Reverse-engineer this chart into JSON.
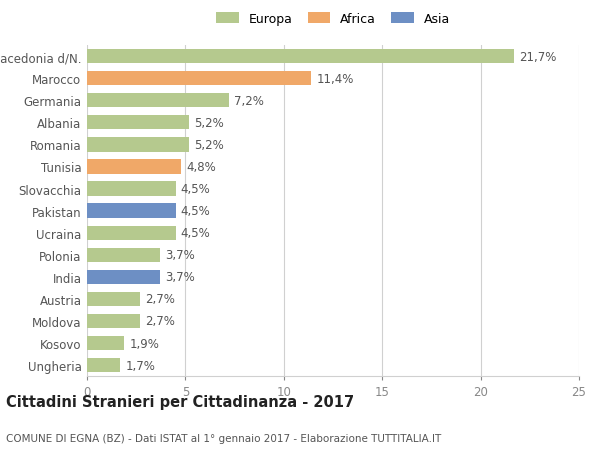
{
  "categories": [
    "Macedonia d/N.",
    "Marocco",
    "Germania",
    "Albania",
    "Romania",
    "Tunisia",
    "Slovacchia",
    "Pakistan",
    "Ucraina",
    "Polonia",
    "India",
    "Austria",
    "Moldova",
    "Kosovo",
    "Ungheria"
  ],
  "values": [
    21.7,
    11.4,
    7.2,
    5.2,
    5.2,
    4.8,
    4.5,
    4.5,
    4.5,
    3.7,
    3.7,
    2.7,
    2.7,
    1.9,
    1.7
  ],
  "labels": [
    "21,7%",
    "11,4%",
    "7,2%",
    "5,2%",
    "5,2%",
    "4,8%",
    "4,5%",
    "4,5%",
    "4,5%",
    "3,7%",
    "3,7%",
    "2,7%",
    "2,7%",
    "1,9%",
    "1,7%"
  ],
  "colors": [
    "#b5c98e",
    "#f0a868",
    "#b5c98e",
    "#b5c98e",
    "#b5c98e",
    "#f0a868",
    "#b5c98e",
    "#6d8fc4",
    "#b5c98e",
    "#b5c98e",
    "#6d8fc4",
    "#b5c98e",
    "#b5c98e",
    "#b5c98e",
    "#b5c98e"
  ],
  "legend_labels": [
    "Europa",
    "Africa",
    "Asia"
  ],
  "legend_colors": [
    "#b5c98e",
    "#f0a868",
    "#6d8fc4"
  ],
  "xlim": [
    0,
    25
  ],
  "xticks": [
    0,
    5,
    10,
    15,
    20,
    25
  ],
  "title": "Cittadini Stranieri per Cittadinanza - 2017",
  "subtitle": "COMUNE DI EGNA (BZ) - Dati ISTAT al 1° gennaio 2017 - Elaborazione TUTTITALIA.IT",
  "background_color": "#ffffff",
  "bar_height": 0.65,
  "grid_color": "#d0d0d0",
  "label_fontsize": 8.5,
  "title_fontsize": 10.5,
  "subtitle_fontsize": 7.5
}
